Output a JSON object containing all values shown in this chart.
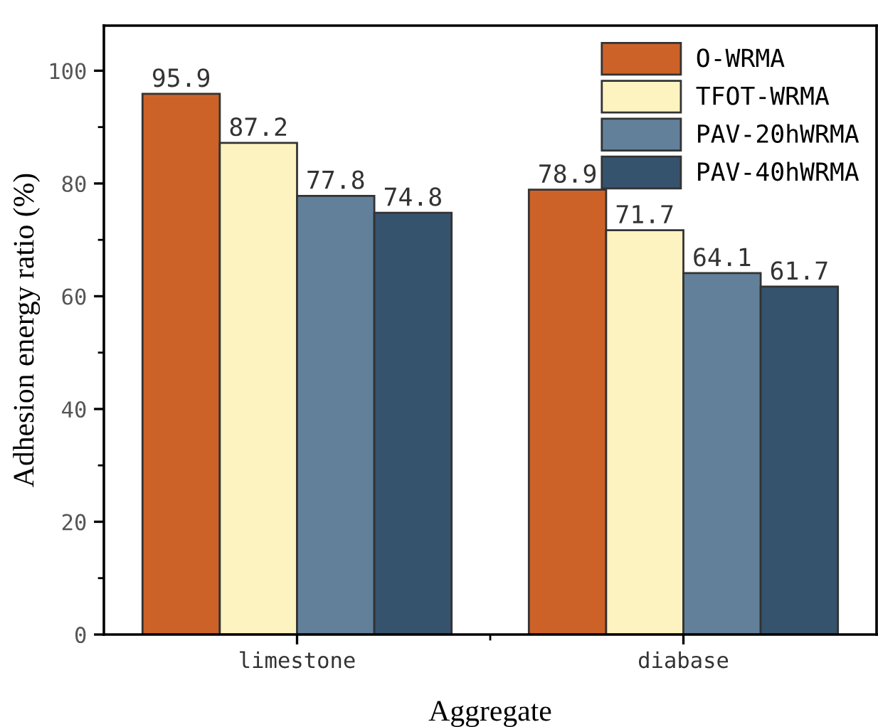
{
  "chart_data": {
    "type": "bar",
    "xlabel": "Aggregate",
    "ylabel": "Adhesion energy ratio (%)",
    "categories": [
      "limestone",
      "diabase"
    ],
    "series": [
      {
        "name": "O-WRMA",
        "color": "#cd6228",
        "values": [
          95.9,
          78.9
        ]
      },
      {
        "name": "TFOT-WRMA",
        "color": "#fdf3c0",
        "values": [
          87.2,
          71.7
        ]
      },
      {
        "name": "PAV-20hWRMA",
        "color": "#62809a",
        "values": [
          77.8,
          64.1
        ]
      },
      {
        "name": "PAV-40hWRMA",
        "color": "#36536e",
        "values": [
          74.8,
          61.7
        ]
      }
    ],
    "ylim": [
      0,
      108
    ],
    "yticks": [
      0,
      20,
      40,
      60,
      80,
      100
    ],
    "data_labels": true,
    "legend": "top right",
    "grid": false
  }
}
